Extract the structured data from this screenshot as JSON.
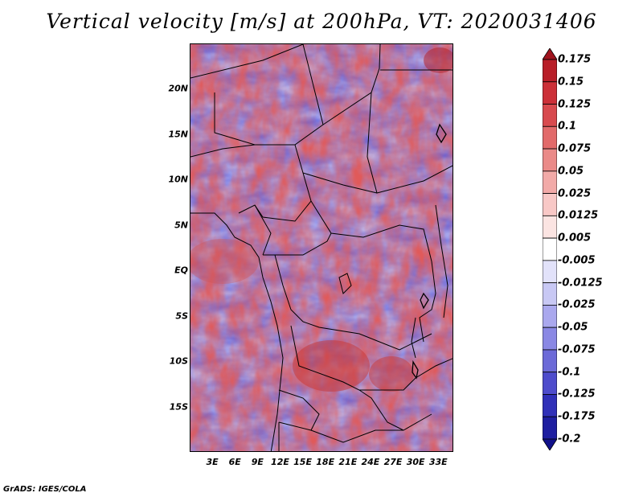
{
  "title": "Vertical velocity [m/s] at 200hPa, VT: 2020031406",
  "credit": "GrADS: IGES/COLA",
  "map": {
    "lat_labels": [
      "20N",
      "15N",
      "10N",
      "5N",
      "EQ",
      "5S",
      "10S",
      "15S"
    ],
    "lon_labels": [
      "3E",
      "6E",
      "9E",
      "12E",
      "15E",
      "18E",
      "21E",
      "24E",
      "27E",
      "30E",
      "33E"
    ],
    "lat_range_deg": [
      -20,
      25
    ],
    "lon_range_deg": [
      0,
      35
    ],
    "lat_ticks_deg": [
      20,
      15,
      10,
      5,
      0,
      -5,
      -10,
      -15
    ],
    "lon_ticks_deg": [
      3,
      6,
      9,
      12,
      15,
      18,
      21,
      24,
      27,
      30,
      33
    ]
  },
  "legend": {
    "levels": [
      "0.175",
      "0.15",
      "0.125",
      "0.1",
      "0.075",
      "0.05",
      "0.025",
      "0.0125",
      "0.005",
      "-0.005",
      "-0.0125",
      "-0.025",
      "-0.05",
      "-0.075",
      "-0.1",
      "-0.125",
      "-0.175",
      "-0.2"
    ],
    "colors": [
      "#a0141e",
      "#b81e28",
      "#cc3038",
      "#d84a4e",
      "#e26a6a",
      "#ea8a88",
      "#f2aaa8",
      "#f8c8c6",
      "#fbe4e2",
      "#ffffff",
      "#e2e2fa",
      "#c8c8f4",
      "#aaa8ee",
      "#8a88e4",
      "#6c6ad8",
      "#4e4ccc",
      "#3030b8",
      "#1e1ea0",
      "#10108a"
    ]
  }
}
